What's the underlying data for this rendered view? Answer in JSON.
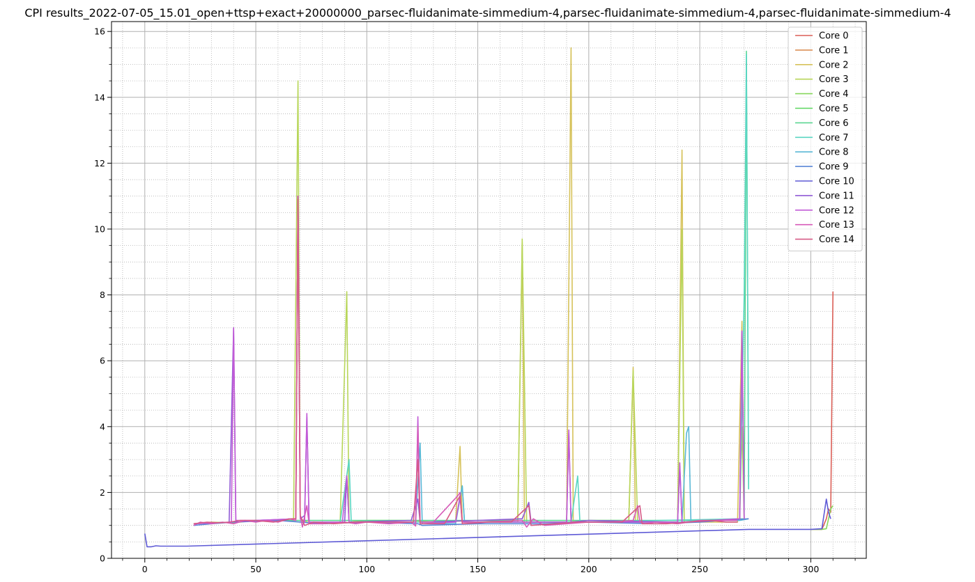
{
  "chart_data": {
    "type": "line",
    "title": "CPI results_2022-07-05_15.01_open+ttsp+exact+20000000_parsec-fluidanimate-simmedium-4,parsec-fluidanimate-simmedium-4,parsec-fluidanimate-simmedium-4",
    "xlabel": "",
    "ylabel": "",
    "xlim": [
      -15,
      325
    ],
    "ylim": [
      0,
      16.3
    ],
    "x_ticks": [
      0,
      50,
      100,
      150,
      200,
      250,
      300
    ],
    "y_ticks": [
      0,
      2,
      4,
      6,
      8,
      10,
      12,
      14,
      16
    ],
    "grid": "major solid, minor dotted",
    "legend_position": "top-right",
    "series": [
      {
        "name": "Core 0",
        "color": "#db5f57",
        "points": [
          [
            300,
            0.88
          ],
          [
            305,
            0.88
          ],
          [
            307,
            1.2
          ],
          [
            308,
            1.5
          ],
          [
            309,
            1.4
          ],
          [
            310,
            8.1
          ]
        ]
      },
      {
        "name": "Core 1",
        "color": "#db9157",
        "points": []
      },
      {
        "name": "Core 2",
        "color": "#d6c25a",
        "points": [
          [
            140,
            1.1
          ],
          [
            142,
            3.4
          ],
          [
            143,
            1.1
          ],
          [
            168,
            1.1
          ],
          [
            170,
            9.6
          ],
          [
            171,
            1.1
          ],
          [
            190,
            1.1
          ],
          [
            192,
            15.5
          ],
          [
            193,
            1.1
          ],
          [
            218,
            1.1
          ],
          [
            220,
            5.8
          ],
          [
            221,
            1.1
          ],
          [
            240,
            1.1
          ],
          [
            242,
            12.4
          ],
          [
            243,
            1.1
          ],
          [
            267,
            1.1
          ],
          [
            269,
            7.2
          ],
          [
            270,
            1.2
          ]
        ]
      },
      {
        "name": "Core 3",
        "color": "#b8d65a",
        "points": [
          [
            22,
            1.05
          ],
          [
            30,
            1.1
          ],
          [
            40,
            1.08
          ],
          [
            50,
            1.15
          ],
          [
            60,
            1.15
          ],
          [
            67,
            1.2
          ],
          [
            69,
            14.5
          ],
          [
            70,
            1.2
          ],
          [
            75,
            1.05
          ],
          [
            88,
            1.1
          ],
          [
            91,
            8.1
          ],
          [
            92,
            1.1
          ],
          [
            100,
            1.15
          ],
          [
            120,
            1.15
          ],
          [
            130,
            1.1
          ],
          [
            150,
            1.15
          ],
          [
            168,
            1.15
          ],
          [
            170,
            9.7
          ],
          [
            172,
            1.1
          ],
          [
            190,
            1.1
          ],
          [
            200,
            1.15
          ],
          [
            218,
            1.15
          ],
          [
            220,
            5.7
          ],
          [
            222,
            1.1
          ],
          [
            240,
            1.1
          ],
          [
            242,
            10.0
          ],
          [
            243,
            1.1
          ],
          [
            260,
            1.15
          ],
          [
            268,
            1.2
          ],
          [
            269,
            4.0
          ],
          [
            270,
            1.2
          ]
        ]
      },
      {
        "name": "Core 4",
        "color": "#86d65a",
        "points": [
          [
            300,
            0.88
          ],
          [
            305,
            0.88
          ],
          [
            307,
            0.9
          ],
          [
            309,
            1.5
          ],
          [
            310,
            1.6
          ]
        ]
      },
      {
        "name": "Core 5",
        "color": "#5ad65e",
        "points": []
      },
      {
        "name": "Core 6",
        "color": "#5ad691",
        "points": [
          [
            60,
            1.15
          ],
          [
            100,
            1.15
          ],
          [
            150,
            1.15
          ],
          [
            200,
            1.15
          ],
          [
            250,
            1.15
          ],
          [
            270,
            1.2
          ],
          [
            271,
            15.4
          ],
          [
            272,
            2.1
          ]
        ]
      },
      {
        "name": "Core 7",
        "color": "#5ad6c2",
        "points": [
          [
            88,
            1.1
          ],
          [
            92,
            3.0
          ],
          [
            93,
            1.1
          ],
          [
            140,
            1.1
          ],
          [
            143,
            2.2
          ],
          [
            144,
            1.1
          ],
          [
            192,
            1.1
          ],
          [
            195,
            2.5
          ],
          [
            196,
            1.1
          ],
          [
            268,
            1.2
          ],
          [
            270,
            8.0
          ],
          [
            271,
            15.3
          ],
          [
            272,
            2.1
          ]
        ]
      },
      {
        "name": "Core 8",
        "color": "#5ab8d6",
        "points": [
          [
            122,
            1.1
          ],
          [
            124,
            3.5
          ],
          [
            125,
            1.05
          ],
          [
            140,
            1.05
          ],
          [
            143,
            2.2
          ],
          [
            144,
            1.1
          ],
          [
            242,
            1.1
          ],
          [
            244,
            3.8
          ],
          [
            245,
            4.0
          ],
          [
            246,
            1.1
          ],
          [
            260,
            1.15
          ],
          [
            268,
            1.15
          ],
          [
            272,
            1.2
          ]
        ]
      },
      {
        "name": "Core 9",
        "color": "#5a86d6",
        "points": [
          [
            22,
            1.0
          ],
          [
            30,
            1.05
          ],
          [
            40,
            1.1
          ],
          [
            60,
            1.15
          ],
          [
            80,
            1.05
          ],
          [
            100,
            1.1
          ],
          [
            123,
            1.05
          ],
          [
            125,
            1.0
          ],
          [
            150,
            1.05
          ],
          [
            180,
            1.05
          ],
          [
            200,
            1.1
          ],
          [
            230,
            1.05
          ],
          [
            250,
            1.1
          ],
          [
            260,
            1.15
          ],
          [
            272,
            1.2
          ]
        ]
      },
      {
        "name": "Core 10",
        "color": "#5e5ad6",
        "points": [
          [
            0,
            0.75
          ],
          [
            1,
            0.35
          ],
          [
            3,
            0.35
          ],
          [
            5,
            0.38
          ],
          [
            7,
            0.37
          ],
          [
            10,
            0.37
          ],
          [
            15,
            0.37
          ],
          [
            19,
            0.37
          ],
          [
            272,
            0.88
          ],
          [
            280,
            0.88
          ],
          [
            290,
            0.88
          ],
          [
            300,
            0.88
          ],
          [
            305,
            0.9
          ],
          [
            307,
            1.8
          ],
          [
            308,
            1.4
          ],
          [
            309,
            1.2
          ]
        ]
      },
      {
        "name": "Core 11",
        "color": "#915ad6",
        "points": [
          [
            22,
            1.05
          ],
          [
            38,
            1.1
          ],
          [
            40,
            7.0
          ],
          [
            41,
            1.1
          ],
          [
            50,
            1.15
          ],
          [
            68,
            1.2
          ],
          [
            69,
            11.0
          ],
          [
            70,
            1.2
          ],
          [
            72,
            1.3
          ],
          [
            73,
            4.3
          ],
          [
            74,
            1.1
          ],
          [
            90,
            1.1
          ],
          [
            91,
            2.5
          ],
          [
            92,
            1.1
          ],
          [
            120,
            1.15
          ],
          [
            123,
            1.8
          ],
          [
            124,
            1.1
          ],
          [
            150,
            1.15
          ],
          [
            170,
            1.2
          ],
          [
            173,
            1.7
          ],
          [
            174,
            1.1
          ],
          [
            190,
            1.1
          ],
          [
            191,
            3.8
          ],
          [
            192,
            1.1
          ],
          [
            200,
            1.15
          ],
          [
            240,
            1.1
          ],
          [
            241,
            2.8
          ],
          [
            242,
            1.1
          ],
          [
            260,
            1.15
          ],
          [
            268,
            1.2
          ],
          [
            269,
            6.9
          ],
          [
            270,
            1.2
          ]
        ]
      },
      {
        "name": "Core 12",
        "color": "#c25ad6",
        "points": [
          [
            22,
            1.05
          ],
          [
            39,
            1.1
          ],
          [
            40,
            7.0
          ],
          [
            41,
            1.15
          ],
          [
            50,
            1.15
          ],
          [
            68,
            1.2
          ],
          [
            69,
            11.0
          ],
          [
            70,
            1.2
          ],
          [
            72,
            1.1
          ],
          [
            73,
            4.4
          ],
          [
            74,
            1.1
          ],
          [
            89,
            1.1
          ],
          [
            91,
            2.5
          ],
          [
            92,
            1.1
          ],
          [
            122,
            1.1
          ],
          [
            123,
            4.3
          ],
          [
            124,
            1.05
          ],
          [
            140,
            1.1
          ],
          [
            142,
            1.9
          ],
          [
            143,
            1.1
          ],
          [
            190,
            1.1
          ],
          [
            191,
            3.9
          ],
          [
            192,
            1.1
          ],
          [
            240,
            1.1
          ],
          [
            241,
            2.9
          ],
          [
            242,
            1.1
          ],
          [
            268,
            1.2
          ],
          [
            269,
            6.9
          ],
          [
            270,
            1.2
          ]
        ]
      },
      {
        "name": "Core 13",
        "color": "#d65ab8",
        "points": [
          [
            22,
            1.0
          ],
          [
            25,
            1.1
          ],
          [
            30,
            1.05
          ],
          [
            35,
            1.1
          ],
          [
            40,
            1.05
          ],
          [
            45,
            1.15
          ],
          [
            50,
            1.1
          ],
          [
            55,
            1.15
          ],
          [
            60,
            1.1
          ],
          [
            65,
            1.2
          ],
          [
            68,
            1.15
          ],
          [
            69,
            11.0
          ],
          [
            70,
            1.3
          ],
          [
            71,
            0.95
          ],
          [
            73,
            1.6
          ],
          [
            74,
            1.05
          ],
          [
            80,
            1.05
          ],
          [
            90,
            1.1
          ],
          [
            95,
            1.05
          ],
          [
            100,
            1.1
          ],
          [
            110,
            1.05
          ],
          [
            120,
            1.1
          ],
          [
            122,
            0.98
          ],
          [
            123,
            4.0
          ],
          [
            124,
            1.1
          ],
          [
            130,
            1.1
          ],
          [
            141,
            1.9
          ],
          [
            142,
            2.0
          ],
          [
            143,
            1.1
          ],
          [
            150,
            1.1
          ],
          [
            170,
            1.15
          ],
          [
            172,
            0.95
          ],
          [
            175,
            1.2
          ],
          [
            180,
            1.0
          ],
          [
            190,
            1.05
          ],
          [
            200,
            1.1
          ],
          [
            210,
            1.1
          ],
          [
            220,
            1.15
          ],
          [
            222,
            1.6
          ],
          [
            223,
            1.1
          ],
          [
            225,
            1.05
          ],
          [
            230,
            1.1
          ],
          [
            240,
            1.05
          ],
          [
            250,
            1.15
          ],
          [
            260,
            1.15
          ],
          [
            267,
            1.15
          ]
        ]
      },
      {
        "name": "Core 14",
        "color": "#d65a86",
        "points": [
          [
            22,
            1.05
          ],
          [
            28,
            1.1
          ],
          [
            34,
            1.08
          ],
          [
            38,
            1.1
          ],
          [
            43,
            1.15
          ],
          [
            50,
            1.15
          ],
          [
            58,
            1.1
          ],
          [
            66,
            1.2
          ],
          [
            68,
            1.2
          ],
          [
            69,
            10.9
          ],
          [
            70,
            1.3
          ],
          [
            72,
            1.0
          ],
          [
            76,
            1.1
          ],
          [
            85,
            1.05
          ],
          [
            95,
            1.1
          ],
          [
            105,
            1.1
          ],
          [
            115,
            1.1
          ],
          [
            121,
            1.1
          ],
          [
            123,
            3.0
          ],
          [
            124,
            1.05
          ],
          [
            135,
            1.05
          ],
          [
            142,
            1.9
          ],
          [
            143,
            1.05
          ],
          [
            155,
            1.1
          ],
          [
            165,
            1.1
          ],
          [
            173,
            1.6
          ],
          [
            174,
            1.0
          ],
          [
            185,
            1.05
          ],
          [
            195,
            1.1
          ],
          [
            205,
            1.1
          ],
          [
            215,
            1.1
          ],
          [
            223,
            1.6
          ],
          [
            224,
            1.05
          ],
          [
            235,
            1.05
          ],
          [
            245,
            1.1
          ],
          [
            255,
            1.15
          ],
          [
            262,
            1.1
          ],
          [
            267,
            1.1
          ]
        ]
      }
    ]
  }
}
